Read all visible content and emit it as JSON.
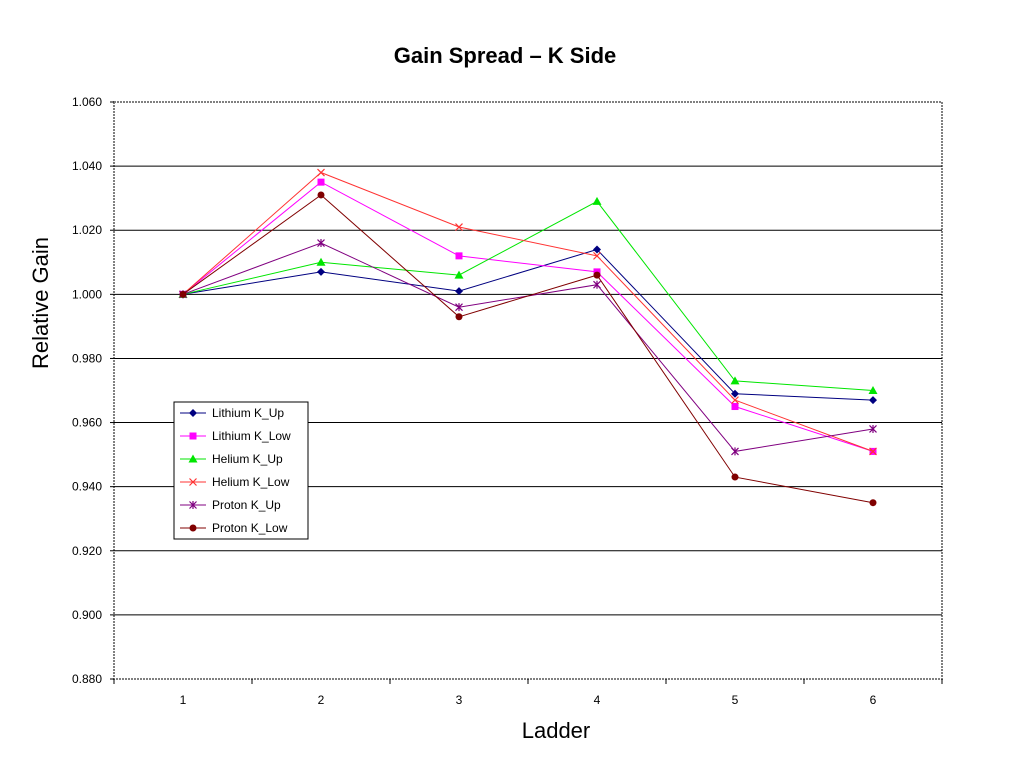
{
  "chart_data": {
    "type": "line",
    "title": "Gain Spread – K Side",
    "xlabel": "Ladder",
    "ylabel": "Relative Gain",
    "categories": [
      "1",
      "2",
      "3",
      "4",
      "5",
      "6"
    ],
    "ylim": [
      0.88,
      1.06
    ],
    "y_ticks": [
      "0.880",
      "0.900",
      "0.920",
      "0.940",
      "0.960",
      "0.980",
      "1.000",
      "1.020",
      "1.040",
      "1.060"
    ],
    "grid": "horizontal",
    "legend_position": "left",
    "series": [
      {
        "name": "Lithium K_Up",
        "color": "#000080",
        "marker": "diamond",
        "values": [
          1.0,
          1.007,
          1.001,
          1.014,
          0.969,
          0.967
        ]
      },
      {
        "name": "Lithium K_Low",
        "color": "#FF00FF",
        "marker": "square",
        "values": [
          1.0,
          1.035,
          1.012,
          1.007,
          0.965,
          0.951
        ]
      },
      {
        "name": "Helium K_Up",
        "color": "#00E600",
        "marker": "triangle",
        "values": [
          1.0,
          1.01,
          1.006,
          1.029,
          0.973,
          0.97
        ]
      },
      {
        "name": "Helium K_Low",
        "color": "#FF3333",
        "marker": "x",
        "values": [
          1.0,
          1.038,
          1.021,
          1.012,
          0.967,
          0.951
        ]
      },
      {
        "name": "Proton K_Up",
        "color": "#800080",
        "marker": "star",
        "values": [
          1.0,
          1.016,
          0.996,
          1.003,
          0.951,
          0.958
        ]
      },
      {
        "name": "Proton K_Low",
        "color": "#800000",
        "marker": "circle",
        "values": [
          1.0,
          1.031,
          0.993,
          1.006,
          0.943,
          0.935
        ]
      }
    ]
  }
}
